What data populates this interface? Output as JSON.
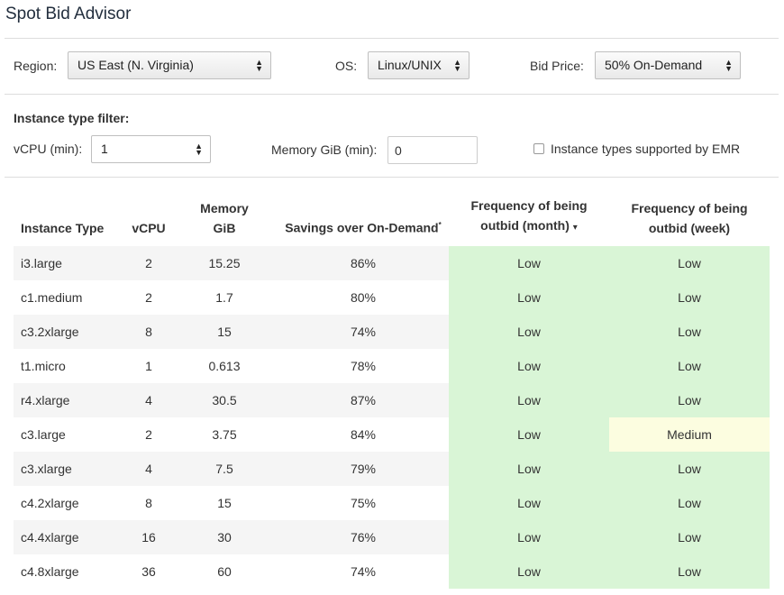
{
  "page": {
    "title": "Spot Bid Advisor"
  },
  "filters": {
    "region_label": "Region:",
    "region_value": "US East (N. Virginia)",
    "os_label": "OS:",
    "os_value": "Linux/UNIX",
    "bid_label": "Bid Price:",
    "bid_value": "50% On-Demand"
  },
  "instance_filter": {
    "heading": "Instance type filter:",
    "vcpu_label": "vCPU (min):",
    "vcpu_value": "1",
    "memory_label": "Memory GiB (min):",
    "memory_value": "0",
    "emr_label": "Instance types supported by EMR",
    "emr_checked": false
  },
  "table": {
    "headers": {
      "type": "Instance Type",
      "vcpu": "vCPU",
      "memory_line1": "Memory",
      "memory_line2": "GiB",
      "savings": "Savings over On-Demand",
      "savings_mark": "*",
      "freq_month_line1": "Frequency of being",
      "freq_month_line2": "outbid (month)",
      "sort_icon": "▾",
      "freq_week_line1": "Frequency of being",
      "freq_week_line2": "outbid (week)"
    },
    "rows": [
      {
        "type": "i3.large",
        "vcpu": "2",
        "memory": "15.25",
        "savings": "86%",
        "month": "Low",
        "week": "Low"
      },
      {
        "type": "c1.medium",
        "vcpu": "2",
        "memory": "1.7",
        "savings": "80%",
        "month": "Low",
        "week": "Low"
      },
      {
        "type": "c3.2xlarge",
        "vcpu": "8",
        "memory": "15",
        "savings": "74%",
        "month": "Low",
        "week": "Low"
      },
      {
        "type": "t1.micro",
        "vcpu": "1",
        "memory": "0.613",
        "savings": "78%",
        "month": "Low",
        "week": "Low"
      },
      {
        "type": "r4.xlarge",
        "vcpu": "4",
        "memory": "30.5",
        "savings": "87%",
        "month": "Low",
        "week": "Low"
      },
      {
        "type": "c3.large",
        "vcpu": "2",
        "memory": "3.75",
        "savings": "84%",
        "month": "Low",
        "week": "Medium"
      },
      {
        "type": "c3.xlarge",
        "vcpu": "4",
        "memory": "7.5",
        "savings": "79%",
        "month": "Low",
        "week": "Low"
      },
      {
        "type": "c4.2xlarge",
        "vcpu": "8",
        "memory": "15",
        "savings": "75%",
        "month": "Low",
        "week": "Low"
      },
      {
        "type": "c4.4xlarge",
        "vcpu": "16",
        "memory": "30",
        "savings": "76%",
        "month": "Low",
        "week": "Low"
      },
      {
        "type": "c4.8xlarge",
        "vcpu": "36",
        "memory": "60",
        "savings": "74%",
        "month": "Low",
        "week": "Low"
      }
    ]
  },
  "colors": {
    "low": "#d9f5d6",
    "medium": "#fcfde0",
    "title": "#232f3e"
  }
}
